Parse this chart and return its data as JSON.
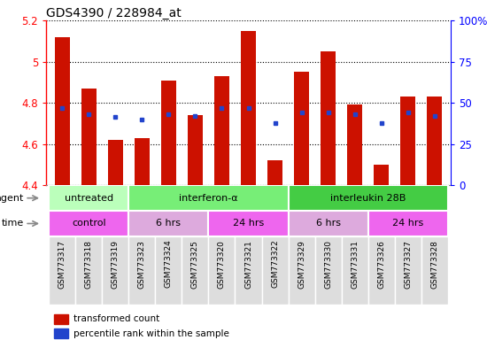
{
  "title": "GDS4390 / 228984_at",
  "samples": [
    "GSM773317",
    "GSM773318",
    "GSM773319",
    "GSM773323",
    "GSM773324",
    "GSM773325",
    "GSM773320",
    "GSM773321",
    "GSM773322",
    "GSM773329",
    "GSM773330",
    "GSM773331",
    "GSM773326",
    "GSM773327",
    "GSM773328"
  ],
  "red_values": [
    5.12,
    4.87,
    4.62,
    4.63,
    4.91,
    4.74,
    4.93,
    5.15,
    4.52,
    4.95,
    5.05,
    4.79,
    4.5,
    4.83,
    4.83
  ],
  "blue_values": [
    4.775,
    4.745,
    4.73,
    4.72,
    4.745,
    4.735,
    4.775,
    4.775,
    4.7,
    4.755,
    4.755,
    4.745,
    4.7,
    4.755,
    4.735
  ],
  "ymin": 4.4,
  "ymax": 5.2,
  "yticks": [
    4.4,
    4.6,
    4.8,
    5.0,
    5.2
  ],
  "ytick_labels": [
    "4.4",
    "4.6",
    "4.8",
    "5",
    "5.2"
  ],
  "y2ticks": [
    0,
    25,
    50,
    75,
    100
  ],
  "y2ticklabels": [
    "0",
    "25",
    "50",
    "75",
    "100%"
  ],
  "bar_color": "#cc1100",
  "dot_color": "#2244cc",
  "agent_groups": [
    {
      "label": "untreated",
      "start": 0,
      "end": 2,
      "color": "#bbffbb"
    },
    {
      "label": "interferon-α",
      "start": 3,
      "end": 8,
      "color": "#77ee77"
    },
    {
      "label": "interleukin 28B",
      "start": 9,
      "end": 14,
      "color": "#44cc44"
    }
  ],
  "time_groups": [
    {
      "label": "control",
      "start": 0,
      "end": 2,
      "color": "#ee66ee"
    },
    {
      "label": "6 hrs",
      "start": 3,
      "end": 5,
      "color": "#ddaadd"
    },
    {
      "label": "24 hrs",
      "start": 6,
      "end": 8,
      "color": "#ee66ee"
    },
    {
      "label": "6 hrs",
      "start": 9,
      "end": 11,
      "color": "#ddaadd"
    },
    {
      "label": "24 hrs",
      "start": 12,
      "end": 14,
      "color": "#ee66ee"
    }
  ],
  "legend_items": [
    {
      "label": "transformed count",
      "color": "#cc1100",
      "marker": "s"
    },
    {
      "label": "percentile rank within the sample",
      "color": "#2244cc",
      "marker": "s"
    }
  ],
  "bar_width": 0.55
}
